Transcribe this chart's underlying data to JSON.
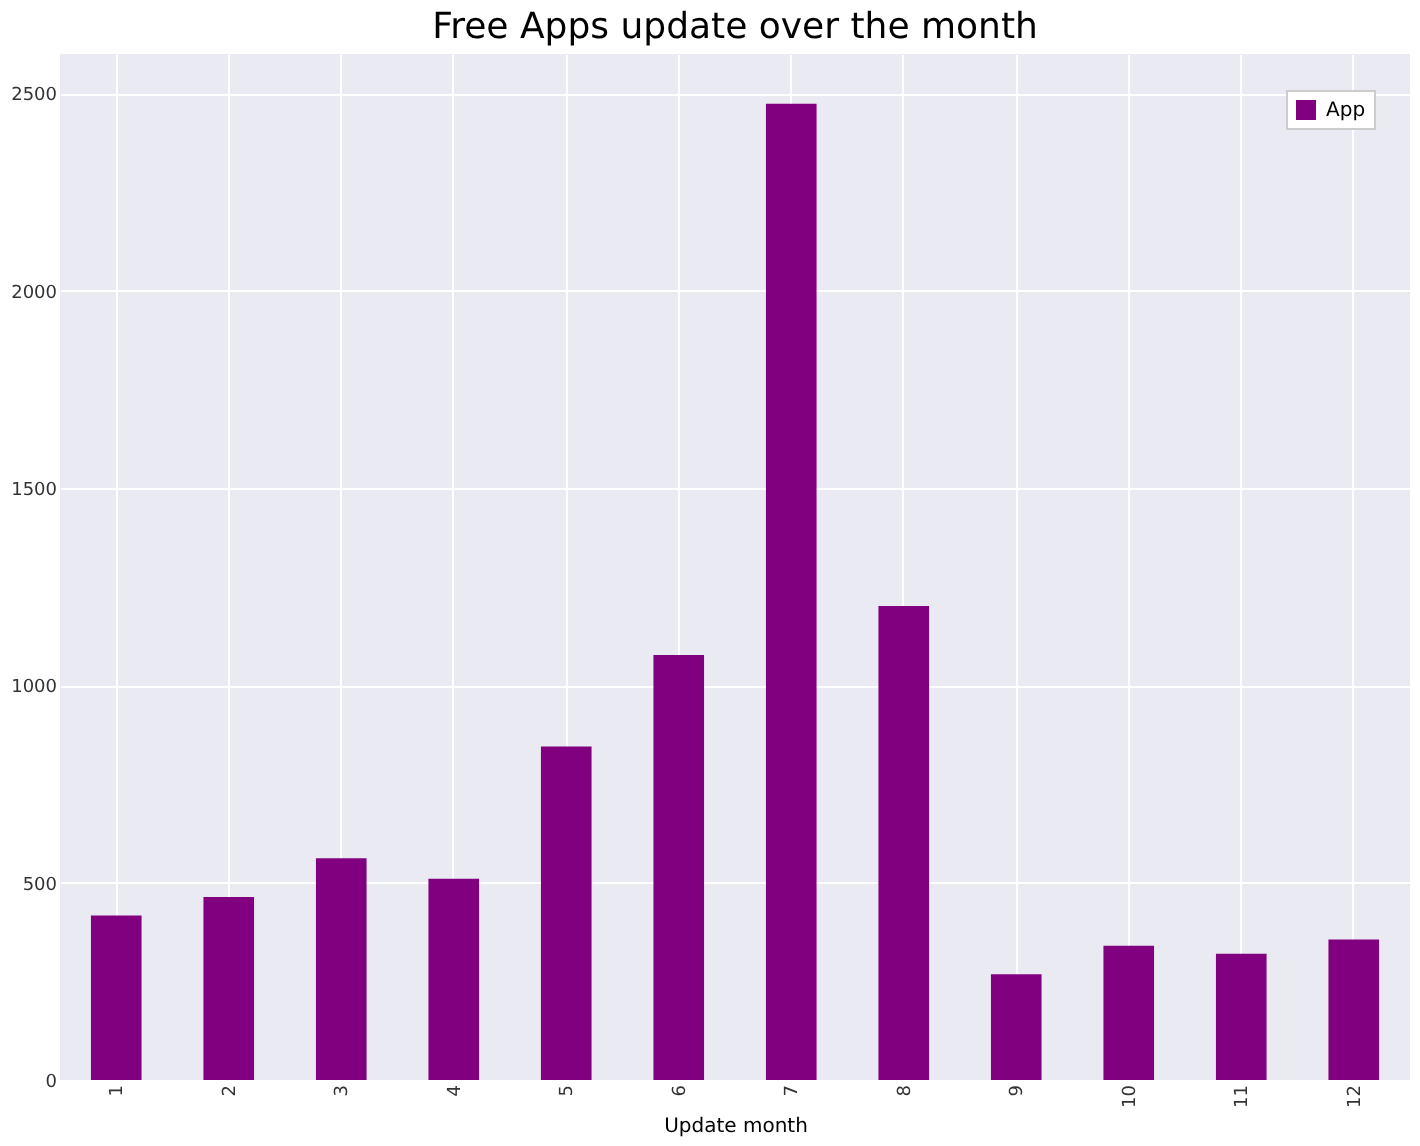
{
  "chart_data": {
    "type": "bar",
    "title": "Free Apps update over the month",
    "xlabel": "Update month",
    "categories": [
      "1",
      "2",
      "3",
      "4",
      "5",
      "6",
      "7",
      "8",
      "9",
      "10",
      "11",
      "12"
    ],
    "series": [
      {
        "name": "App",
        "color": "#800080",
        "values": [
          417,
          464,
          562,
          510,
          845,
          1077,
          2474,
          1201,
          268,
          340,
          320,
          356
        ]
      }
    ],
    "ylim": [
      0,
      2600
    ],
    "yticks": [
      0,
      500,
      1000,
      1500,
      2000,
      2500
    ],
    "grid": true,
    "legend": "top right"
  }
}
